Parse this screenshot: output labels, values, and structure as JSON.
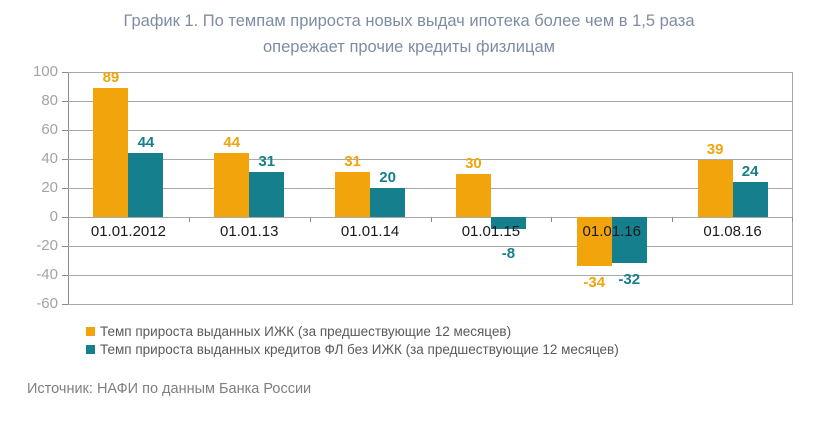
{
  "title": {
    "line1": "График 1. По темпам прироста новых выдач ипотека более чем в 1,5 раза",
    "line2": "опережает прочие кредиты физлицам"
  },
  "source": "Источник: НАФИ по данным Банка России",
  "colors": {
    "series1": "#F1A40B",
    "series2": "#157F8E",
    "title_text": "#7E8CA3",
    "y_axis_label": "#A3A3A3",
    "x_axis_label": "#1A1A1A",
    "gridline": "#A8A8A8",
    "axis_line": "#8C8C8C",
    "legend_text": "#5A5A5A",
    "source_text": "#7F7F7F"
  },
  "chart_data": {
    "type": "bar",
    "title": "График 1. По темпам прироста новых выдач ипотека более чем в 1,5 раза опережает прочие кредиты физлицам",
    "categories": [
      "01.01.2012",
      "01.01.13",
      "01.01.14",
      "01.01.15",
      "01.01.16",
      "01.08.16"
    ],
    "series": [
      {
        "name": "Темп прироста выданных ИЖК (за предшествующие 12 месяцев)",
        "color": "#F1A40B",
        "values": [
          89,
          44,
          31,
          30,
          -34,
          39
        ]
      },
      {
        "name": "Темп прироста выданных кредитов ФЛ без ИЖК (за предшествующие 12 месяцев)",
        "color": "#157F8E",
        "values": [
          44,
          31,
          20,
          -8,
          -32,
          24
        ]
      }
    ],
    "ylim": [
      -60,
      100
    ],
    "ytick_step": 20,
    "grid": true,
    "data_labels": true,
    "legend_position": "bottom",
    "xlabel": "",
    "ylabel": ""
  }
}
